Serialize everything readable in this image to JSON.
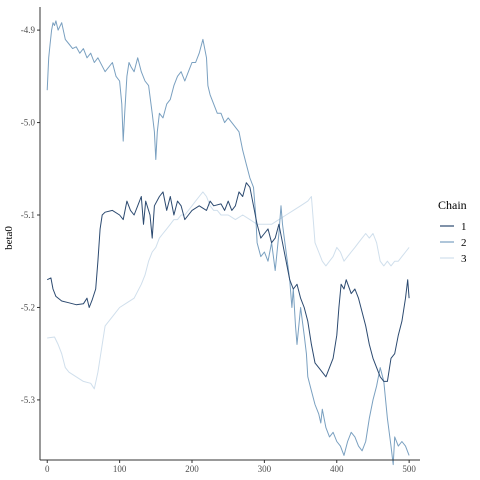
{
  "chart_data": {
    "type": "line",
    "xlabel": "",
    "ylabel": "beta0",
    "xlim": [
      -10,
      515
    ],
    "ylim": [
      -5.365,
      -4.875
    ],
    "x_ticks": [
      0,
      100,
      200,
      300,
      400,
      500
    ],
    "x_tick_labels": [
      "0",
      "100",
      "200",
      "300",
      "400",
      "500"
    ],
    "y_ticks": [
      -4.9,
      -5.0,
      -5.1,
      -5.2,
      -5.3
    ],
    "y_tick_labels": [
      "-4.9",
      "-5.0",
      "-5.1",
      "-5.2",
      "-5.3"
    ],
    "grid": false,
    "legend": {
      "title": "Chain",
      "position": "right"
    },
    "series": [
      {
        "name": "1",
        "color": "#2c4a70",
        "points": [
          [
            0,
            -5.17
          ],
          [
            5,
            -5.168
          ],
          [
            8,
            -5.18
          ],
          [
            12,
            -5.188
          ],
          [
            20,
            -5.193
          ],
          [
            30,
            -5.195
          ],
          [
            40,
            -5.197
          ],
          [
            50,
            -5.196
          ],
          [
            55,
            -5.19
          ],
          [
            58,
            -5.2
          ],
          [
            62,
            -5.192
          ],
          [
            67,
            -5.18
          ],
          [
            70,
            -5.15
          ],
          [
            73,
            -5.115
          ],
          [
            76,
            -5.1
          ],
          [
            80,
            -5.097
          ],
          [
            90,
            -5.095
          ],
          [
            100,
            -5.1
          ],
          [
            105,
            -5.105
          ],
          [
            110,
            -5.085
          ],
          [
            115,
            -5.095
          ],
          [
            120,
            -5.1
          ],
          [
            125,
            -5.09
          ],
          [
            130,
            -5.08
          ],
          [
            133,
            -5.11
          ],
          [
            136,
            -5.085
          ],
          [
            142,
            -5.1
          ],
          [
            145,
            -5.125
          ],
          [
            148,
            -5.09
          ],
          [
            155,
            -5.08
          ],
          [
            160,
            -5.075
          ],
          [
            165,
            -5.095
          ],
          [
            170,
            -5.08
          ],
          [
            175,
            -5.1
          ],
          [
            180,
            -5.085
          ],
          [
            185,
            -5.09
          ],
          [
            190,
            -5.105
          ],
          [
            195,
            -5.1
          ],
          [
            200,
            -5.095
          ],
          [
            210,
            -5.09
          ],
          [
            220,
            -5.095
          ],
          [
            225,
            -5.085
          ],
          [
            230,
            -5.09
          ],
          [
            240,
            -5.088
          ],
          [
            245,
            -5.095
          ],
          [
            250,
            -5.085
          ],
          [
            255,
            -5.095
          ],
          [
            260,
            -5.09
          ],
          [
            265,
            -5.075
          ],
          [
            270,
            -5.08
          ],
          [
            275,
            -5.065
          ],
          [
            280,
            -5.07
          ],
          [
            285,
            -5.09
          ],
          [
            290,
            -5.11
          ],
          [
            295,
            -5.125
          ],
          [
            300,
            -5.12
          ],
          [
            305,
            -5.115
          ],
          [
            310,
            -5.13
          ],
          [
            315,
            -5.125
          ],
          [
            320,
            -5.11
          ],
          [
            325,
            -5.13
          ],
          [
            330,
            -5.15
          ],
          [
            335,
            -5.17
          ],
          [
            340,
            -5.18
          ],
          [
            345,
            -5.175
          ],
          [
            350,
            -5.19
          ],
          [
            355,
            -5.2
          ],
          [
            360,
            -5.215
          ],
          [
            365,
            -5.24
          ],
          [
            370,
            -5.26
          ],
          [
            375,
            -5.265
          ],
          [
            380,
            -5.27
          ],
          [
            385,
            -5.275
          ],
          [
            390,
            -5.265
          ],
          [
            395,
            -5.255
          ],
          [
            400,
            -5.23
          ],
          [
            403,
            -5.2
          ],
          [
            406,
            -5.175
          ],
          [
            410,
            -5.18
          ],
          [
            413,
            -5.17
          ],
          [
            420,
            -5.185
          ],
          [
            425,
            -5.18
          ],
          [
            430,
            -5.19
          ],
          [
            440,
            -5.22
          ],
          [
            445,
            -5.24
          ],
          [
            450,
            -5.255
          ],
          [
            455,
            -5.265
          ],
          [
            460,
            -5.275
          ],
          [
            465,
            -5.28
          ],
          [
            470,
            -5.28
          ],
          [
            475,
            -5.255
          ],
          [
            480,
            -5.25
          ],
          [
            485,
            -5.23
          ],
          [
            490,
            -5.215
          ],
          [
            495,
            -5.19
          ],
          [
            498,
            -5.17
          ],
          [
            500,
            -5.19
          ]
        ]
      },
      {
        "name": "2",
        "color": "#7aa0c0",
        "points": [
          [
            0,
            -4.965
          ],
          [
            2,
            -4.93
          ],
          [
            4,
            -4.915
          ],
          [
            6,
            -4.9
          ],
          [
            8,
            -4.892
          ],
          [
            10,
            -4.895
          ],
          [
            12,
            -4.89
          ],
          [
            15,
            -4.9
          ],
          [
            20,
            -4.892
          ],
          [
            25,
            -4.91
          ],
          [
            30,
            -4.915
          ],
          [
            35,
            -4.92
          ],
          [
            40,
            -4.918
          ],
          [
            45,
            -4.925
          ],
          [
            50,
            -4.92
          ],
          [
            55,
            -4.93
          ],
          [
            60,
            -4.925
          ],
          [
            65,
            -4.935
          ],
          [
            70,
            -4.93
          ],
          [
            80,
            -4.945
          ],
          [
            90,
            -4.935
          ],
          [
            95,
            -4.95
          ],
          [
            100,
            -4.955
          ],
          [
            103,
            -4.98
          ],
          [
            105,
            -5.02
          ],
          [
            107,
            -4.99
          ],
          [
            110,
            -4.95
          ],
          [
            113,
            -4.935
          ],
          [
            116,
            -4.94
          ],
          [
            120,
            -4.945
          ],
          [
            125,
            -4.93
          ],
          [
            130,
            -4.945
          ],
          [
            135,
            -4.955
          ],
          [
            140,
            -4.96
          ],
          [
            145,
            -4.99
          ],
          [
            148,
            -5.01
          ],
          [
            150,
            -5.04
          ],
          [
            152,
            -5.01
          ],
          [
            155,
            -4.99
          ],
          [
            160,
            -4.995
          ],
          [
            165,
            -4.98
          ],
          [
            170,
            -4.975
          ],
          [
            175,
            -4.96
          ],
          [
            180,
            -4.95
          ],
          [
            185,
            -4.945
          ],
          [
            190,
            -4.955
          ],
          [
            195,
            -4.945
          ],
          [
            200,
            -4.935
          ],
          [
            205,
            -4.935
          ],
          [
            210,
            -4.925
          ],
          [
            215,
            -4.91
          ],
          [
            220,
            -4.93
          ],
          [
            222,
            -4.96
          ],
          [
            225,
            -4.97
          ],
          [
            230,
            -4.98
          ],
          [
            235,
            -4.99
          ],
          [
            240,
            -4.99
          ],
          [
            245,
            -5.0
          ],
          [
            250,
            -4.995
          ],
          [
            255,
            -5.0
          ],
          [
            260,
            -5.005
          ],
          [
            265,
            -5.01
          ],
          [
            270,
            -5.03
          ],
          [
            275,
            -5.045
          ],
          [
            280,
            -5.06
          ],
          [
            285,
            -5.07
          ],
          [
            288,
            -5.1
          ],
          [
            290,
            -5.13
          ],
          [
            295,
            -5.145
          ],
          [
            300,
            -5.14
          ],
          [
            305,
            -5.15
          ],
          [
            310,
            -5.13
          ],
          [
            315,
            -5.16
          ],
          [
            320,
            -5.12
          ],
          [
            323,
            -5.09
          ],
          [
            325,
            -5.11
          ],
          [
            330,
            -5.14
          ],
          [
            335,
            -5.17
          ],
          [
            338,
            -5.2
          ],
          [
            340,
            -5.18
          ],
          [
            343,
            -5.22
          ],
          [
            345,
            -5.24
          ],
          [
            350,
            -5.2
          ],
          [
            355,
            -5.23
          ],
          [
            358,
            -5.25
          ],
          [
            360,
            -5.275
          ],
          [
            365,
            -5.29
          ],
          [
            370,
            -5.305
          ],
          [
            375,
            -5.315
          ],
          [
            378,
            -5.325
          ],
          [
            380,
            -5.31
          ],
          [
            385,
            -5.33
          ],
          [
            390,
            -5.34
          ],
          [
            395,
            -5.335
          ],
          [
            400,
            -5.345
          ],
          [
            405,
            -5.35
          ],
          [
            410,
            -5.36
          ],
          [
            415,
            -5.345
          ],
          [
            420,
            -5.335
          ],
          [
            425,
            -5.34
          ],
          [
            430,
            -5.35
          ],
          [
            435,
            -5.355
          ],
          [
            440,
            -5.345
          ],
          [
            445,
            -5.32
          ],
          [
            450,
            -5.3
          ],
          [
            455,
            -5.285
          ],
          [
            460,
            -5.265
          ],
          [
            465,
            -5.28
          ],
          [
            470,
            -5.32
          ],
          [
            475,
            -5.35
          ],
          [
            478,
            -5.37
          ],
          [
            480,
            -5.34
          ],
          [
            485,
            -5.35
          ],
          [
            490,
            -5.345
          ],
          [
            495,
            -5.35
          ],
          [
            500,
            -5.36
          ]
        ]
      },
      {
        "name": "3",
        "color": "#d0dfec",
        "points": [
          [
            0,
            -5.233
          ],
          [
            10,
            -5.232
          ],
          [
            15,
            -5.24
          ],
          [
            20,
            -5.25
          ],
          [
            25,
            -5.265
          ],
          [
            30,
            -5.27
          ],
          [
            40,
            -5.275
          ],
          [
            50,
            -5.28
          ],
          [
            60,
            -5.282
          ],
          [
            65,
            -5.288
          ],
          [
            70,
            -5.27
          ],
          [
            75,
            -5.245
          ],
          [
            80,
            -5.22
          ],
          [
            90,
            -5.21
          ],
          [
            100,
            -5.2
          ],
          [
            110,
            -5.195
          ],
          [
            120,
            -5.19
          ],
          [
            130,
            -5.175
          ],
          [
            135,
            -5.165
          ],
          [
            140,
            -5.15
          ],
          [
            145,
            -5.14
          ],
          [
            150,
            -5.135
          ],
          [
            155,
            -5.125
          ],
          [
            160,
            -5.12
          ],
          [
            165,
            -5.115
          ],
          [
            170,
            -5.11
          ],
          [
            175,
            -5.105
          ],
          [
            180,
            -5.105
          ],
          [
            185,
            -5.1
          ],
          [
            190,
            -5.1
          ],
          [
            195,
            -5.095
          ],
          [
            200,
            -5.09
          ],
          [
            205,
            -5.085
          ],
          [
            210,
            -5.08
          ],
          [
            215,
            -5.075
          ],
          [
            220,
            -5.08
          ],
          [
            225,
            -5.09
          ],
          [
            230,
            -5.095
          ],
          [
            235,
            -5.095
          ],
          [
            240,
            -5.1
          ],
          [
            250,
            -5.1
          ],
          [
            260,
            -5.105
          ],
          [
            270,
            -5.1
          ],
          [
            280,
            -5.105
          ],
          [
            290,
            -5.11
          ],
          [
            300,
            -5.11
          ],
          [
            310,
            -5.11
          ],
          [
            320,
            -5.105
          ],
          [
            330,
            -5.1
          ],
          [
            340,
            -5.095
          ],
          [
            350,
            -5.09
          ],
          [
            360,
            -5.085
          ],
          [
            365,
            -5.08
          ],
          [
            368,
            -5.11
          ],
          [
            370,
            -5.13
          ],
          [
            375,
            -5.14
          ],
          [
            380,
            -5.15
          ],
          [
            385,
            -5.155
          ],
          [
            390,
            -5.15
          ],
          [
            395,
            -5.145
          ],
          [
            400,
            -5.135
          ],
          [
            405,
            -5.14
          ],
          [
            410,
            -5.15
          ],
          [
            415,
            -5.145
          ],
          [
            420,
            -5.14
          ],
          [
            425,
            -5.135
          ],
          [
            430,
            -5.13
          ],
          [
            435,
            -5.125
          ],
          [
            440,
            -5.12
          ],
          [
            445,
            -5.125
          ],
          [
            450,
            -5.12
          ],
          [
            455,
            -5.13
          ],
          [
            460,
            -5.15
          ],
          [
            465,
            -5.155
          ],
          [
            470,
            -5.15
          ],
          [
            475,
            -5.155
          ],
          [
            480,
            -5.15
          ],
          [
            485,
            -5.15
          ],
          [
            490,
            -5.145
          ],
          [
            495,
            -5.14
          ],
          [
            500,
            -5.135
          ]
        ]
      }
    ]
  }
}
